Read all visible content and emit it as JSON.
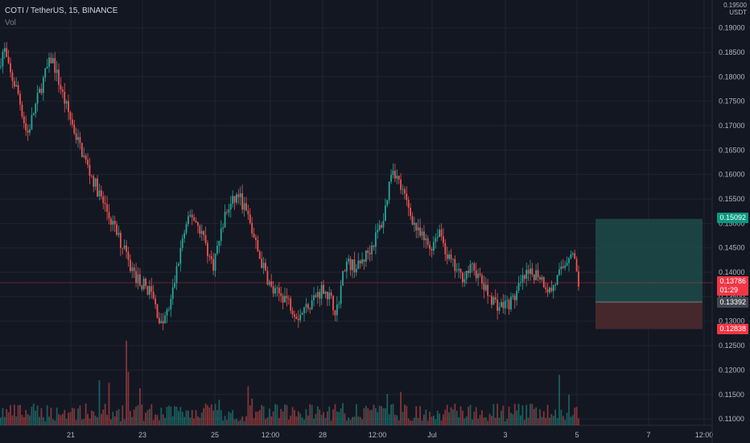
{
  "header": {
    "symbol_line": "COTI / TetherUS, 15, BINANCE",
    "vol_label": "Vol"
  },
  "axis": {
    "currency_top": "0.19500",
    "currency": "USDT"
  },
  "price_tags": {
    "target": "0.15092",
    "current": "0.13786",
    "countdown": "01:29",
    "entry": "0.13392",
    "stop": "0.12838"
  },
  "colors": {
    "background": "#131722",
    "up": "#26a69a",
    "down": "#ef5350",
    "profit_zone": "#1e4b49",
    "loss_zone": "#4b2a2e"
  },
  "chart_data": {
    "type": "candlestick",
    "symbol": "COTI / TetherUS",
    "interval": "15",
    "exchange": "BINANCE",
    "y_ticks": [
      "0.19000",
      "0.18500",
      "0.18000",
      "0.17500",
      "0.17000",
      "0.16500",
      "0.16000",
      "0.15500",
      "0.15000",
      "0.14500",
      "0.14000",
      "0.13500",
      "0.13000",
      "0.12500",
      "0.12000",
      "0.11500",
      "0.11000"
    ],
    "y_tick_values": [
      0.19,
      0.185,
      0.18,
      0.175,
      0.17,
      0.165,
      0.16,
      0.155,
      0.15,
      0.145,
      0.14,
      0.135,
      0.13,
      0.125,
      0.12,
      0.115,
      0.11
    ],
    "ylim": [
      0.1087,
      0.1957
    ],
    "x_ticks": [
      "21",
      "23",
      "25",
      "12:00",
      "28",
      "12:00",
      "Jul",
      "3",
      "5",
      "7",
      "12:00"
    ],
    "price_path": [
      {
        "t": 0,
        "p": 0.182
      },
      {
        "t": 0.06,
        "p": 0.186
      },
      {
        "t": 0.12,
        "p": 0.181
      },
      {
        "t": 0.22,
        "p": 0.177
      },
      {
        "t": 0.33,
        "p": 0.168
      },
      {
        "t": 0.46,
        "p": 0.176
      },
      {
        "t": 0.55,
        "p": 0.181
      },
      {
        "t": 0.62,
        "p": 0.184
      },
      {
        "t": 0.75,
        "p": 0.176
      },
      {
        "t": 0.9,
        "p": 0.168
      },
      {
        "t": 1.05,
        "p": 0.161
      },
      {
        "t": 1.2,
        "p": 0.155
      },
      {
        "t": 1.4,
        "p": 0.147
      },
      {
        "t": 1.6,
        "p": 0.139
      },
      {
        "t": 1.78,
        "p": 0.136
      },
      {
        "t": 1.9,
        "p": 0.129
      },
      {
        "t": 2.0,
        "p": 0.133
      },
      {
        "t": 2.15,
        "p": 0.147
      },
      {
        "t": 2.25,
        "p": 0.152
      },
      {
        "t": 2.38,
        "p": 0.148
      },
      {
        "t": 2.5,
        "p": 0.141
      },
      {
        "t": 2.65,
        "p": 0.152
      },
      {
        "t": 2.8,
        "p": 0.156
      },
      {
        "t": 2.9,
        "p": 0.152
      },
      {
        "t": 3.05,
        "p": 0.143
      },
      {
        "t": 3.2,
        "p": 0.136
      },
      {
        "t": 3.35,
        "p": 0.135
      },
      {
        "t": 3.5,
        "p": 0.131
      },
      {
        "t": 3.65,
        "p": 0.134
      },
      {
        "t": 3.8,
        "p": 0.137
      },
      {
        "t": 3.95,
        "p": 0.132
      },
      {
        "t": 4.05,
        "p": 0.142
      },
      {
        "t": 4.2,
        "p": 0.141
      },
      {
        "t": 4.35,
        "p": 0.145
      },
      {
        "t": 4.5,
        "p": 0.151
      },
      {
        "t": 4.6,
        "p": 0.162
      },
      {
        "t": 4.75,
        "p": 0.155
      },
      {
        "t": 4.9,
        "p": 0.148
      },
      {
        "t": 5.05,
        "p": 0.145
      },
      {
        "t": 5.15,
        "p": 0.149
      },
      {
        "t": 5.25,
        "p": 0.143
      },
      {
        "t": 5.4,
        "p": 0.139
      },
      {
        "t": 5.55,
        "p": 0.141
      },
      {
        "t": 5.7,
        "p": 0.136
      },
      {
        "t": 5.85,
        "p": 0.133
      },
      {
        "t": 6.0,
        "p": 0.134
      },
      {
        "t": 6.15,
        "p": 0.139
      },
      {
        "t": 6.3,
        "p": 0.14
      },
      {
        "t": 6.45,
        "p": 0.136
      },
      {
        "t": 6.6,
        "p": 0.141
      },
      {
        "t": 6.7,
        "p": 0.145
      },
      {
        "t": 6.78,
        "p": 0.1378
      }
    ]
  }
}
